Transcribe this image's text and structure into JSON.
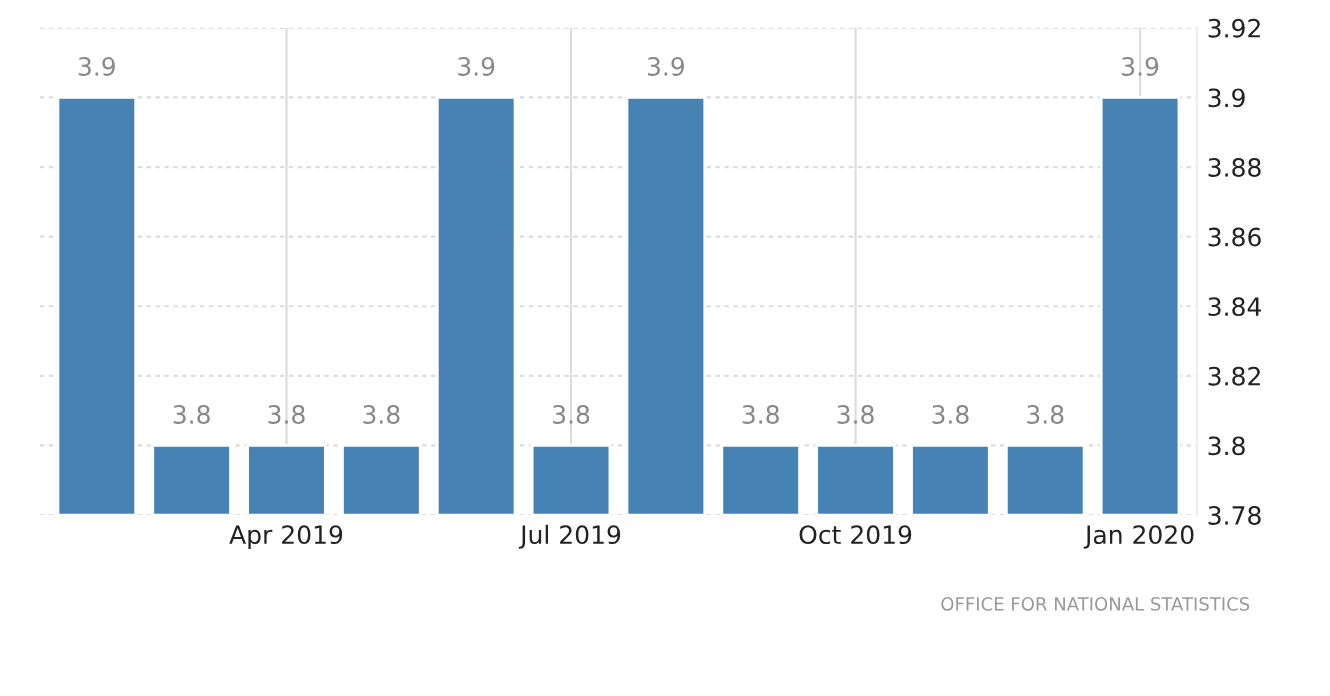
{
  "chart_data": {
    "type": "bar",
    "categories": [
      null,
      null,
      "Apr 2019",
      null,
      null,
      "Jul 2019",
      null,
      null,
      "Oct 2019",
      null,
      null,
      "Jan 2020"
    ],
    "values": [
      3.9,
      3.8,
      3.8,
      3.8,
      3.9,
      3.8,
      3.9,
      3.8,
      3.8,
      3.8,
      3.8,
      3.9
    ],
    "color": "#4682b4",
    "ylim": [
      3.78,
      3.92
    ],
    "yticks": [
      3.78,
      3.8,
      3.82,
      3.84,
      3.86,
      3.88,
      3.9,
      3.92
    ],
    "grid": true,
    "data_labels": true,
    "annotations": [
      "OFFICE FOR NATIONAL STATISTICS"
    ]
  }
}
